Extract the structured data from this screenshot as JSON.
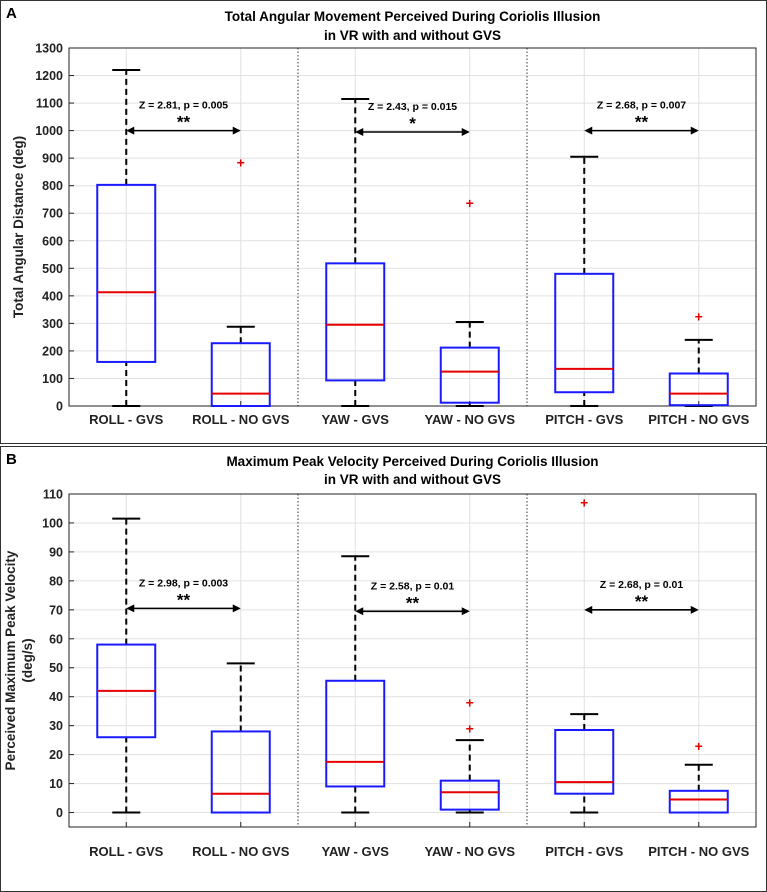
{
  "chart_data": [
    {
      "panel_letter": "A",
      "type": "box",
      "title": "Total Angular Movement Perceived During Coriolis Illusion",
      "subtitle": "in VR with and without GVS",
      "ylabel_lines": [
        "Total Angular Distance (deg)"
      ],
      "ylim": [
        0,
        1300
      ],
      "yticks": [
        0,
        100,
        200,
        300,
        400,
        500,
        600,
        700,
        800,
        900,
        1000,
        1100,
        1200,
        1300
      ],
      "grid": true,
      "categories": [
        "ROLL - GVS",
        "ROLL - NO GVS",
        "YAW - GVS",
        "YAW - NO GVS",
        "PITCH - GVS",
        "PITCH - NO GVS"
      ],
      "boxes": [
        {
          "category": "ROLL - GVS",
          "whisker_low": 0,
          "q1": 160,
          "median": 413,
          "q3": 803,
          "whisker_high": 1220,
          "outliers": []
        },
        {
          "category": "ROLL - NO GVS",
          "whisker_low": 0,
          "q1": 0,
          "median": 45,
          "q3": 228,
          "whisker_high": 288,
          "outliers": [
            885
          ]
        },
        {
          "category": "YAW - GVS",
          "whisker_low": 0,
          "q1": 93,
          "median": 295,
          "q3": 518,
          "whisker_high": 1115,
          "outliers": []
        },
        {
          "category": "YAW - NO GVS",
          "whisker_low": 0,
          "q1": 12,
          "median": 125,
          "q3": 212,
          "whisker_high": 305,
          "outliers": [
            737
          ]
        },
        {
          "category": "PITCH - GVS",
          "whisker_low": 0,
          "q1": 50,
          "median": 135,
          "q3": 480,
          "whisker_high": 905,
          "outliers": []
        },
        {
          "category": "PITCH - NO GVS",
          "whisker_low": 0,
          "q1": 3,
          "median": 45,
          "q3": 118,
          "whisker_high": 240,
          "outliers": [
            325
          ]
        }
      ],
      "comparisons": [
        {
          "from": 0,
          "to": 1,
          "y": 1000,
          "stats": "Z = 2.81, p = 0.005",
          "stars": "**"
        },
        {
          "from": 2,
          "to": 3,
          "y": 995,
          "stats": "Z = 2.43, p = 0.015",
          "stars": "*"
        },
        {
          "from": 4,
          "to": 5,
          "y": 1000,
          "stats": "Z = 2.68, p = 0.007",
          "stars": "**"
        }
      ]
    },
    {
      "panel_letter": "B",
      "type": "box",
      "title": "Maximum Peak Velocity Perceived During Coriolis Illusion",
      "subtitle": "in VR with and without GVS",
      "ylabel_lines": [
        "Perceived Maximum Peak Velocity",
        "(deg/s)"
      ],
      "ylim": [
        -5,
        110
      ],
      "yticks": [
        0,
        10,
        20,
        30,
        40,
        50,
        60,
        70,
        80,
        90,
        100,
        110
      ],
      "grid": true,
      "categories": [
        "ROLL - GVS",
        "ROLL - NO GVS",
        "YAW - GVS",
        "YAW - NO GVS",
        "PITCH - GVS",
        "PITCH - NO GVS"
      ],
      "boxes": [
        {
          "category": "ROLL - GVS",
          "whisker_low": 0,
          "q1": 26,
          "median": 42,
          "q3": 58,
          "whisker_high": 101.5,
          "outliers": []
        },
        {
          "category": "ROLL - NO GVS",
          "whisker_low": 0,
          "q1": 0,
          "median": 6.5,
          "q3": 28,
          "whisker_high": 51.5,
          "outliers": []
        },
        {
          "category": "YAW - GVS",
          "whisker_low": 0,
          "q1": 9,
          "median": 17.5,
          "q3": 45.5,
          "whisker_high": 88.5,
          "outliers": []
        },
        {
          "category": "YAW - NO GVS",
          "whisker_low": 0,
          "q1": 1,
          "median": 7,
          "q3": 11,
          "whisker_high": 25,
          "outliers": [
            29,
            38
          ]
        },
        {
          "category": "PITCH - GVS",
          "whisker_low": 0,
          "q1": 6.5,
          "median": 10.5,
          "q3": 28.5,
          "whisker_high": 34,
          "outliers": [
            107
          ]
        },
        {
          "category": "PITCH - NO GVS",
          "whisker_low": 0,
          "q1": 0,
          "median": 4.5,
          "q3": 7.5,
          "whisker_high": 16.5,
          "outliers": [
            23
          ]
        }
      ],
      "comparisons": [
        {
          "from": 0,
          "to": 1,
          "y": 70.5,
          "stats": "Z = 2.98, p = 0.003",
          "stars": "**"
        },
        {
          "from": 2,
          "to": 3,
          "y": 69.5,
          "stats": "Z = 2.58, p = 0.01",
          "stars": "**"
        },
        {
          "from": 4,
          "to": 5,
          "y": 70,
          "stats": "Z = 2.68, p = 0.01",
          "stars": "**"
        }
      ]
    }
  ],
  "colors": {
    "box_edge": "#1a1aff",
    "median": "#e60000",
    "whisker": "#000000",
    "outlier": "#e60000",
    "grid": "#e0e0e0",
    "divider": "#555555"
  }
}
